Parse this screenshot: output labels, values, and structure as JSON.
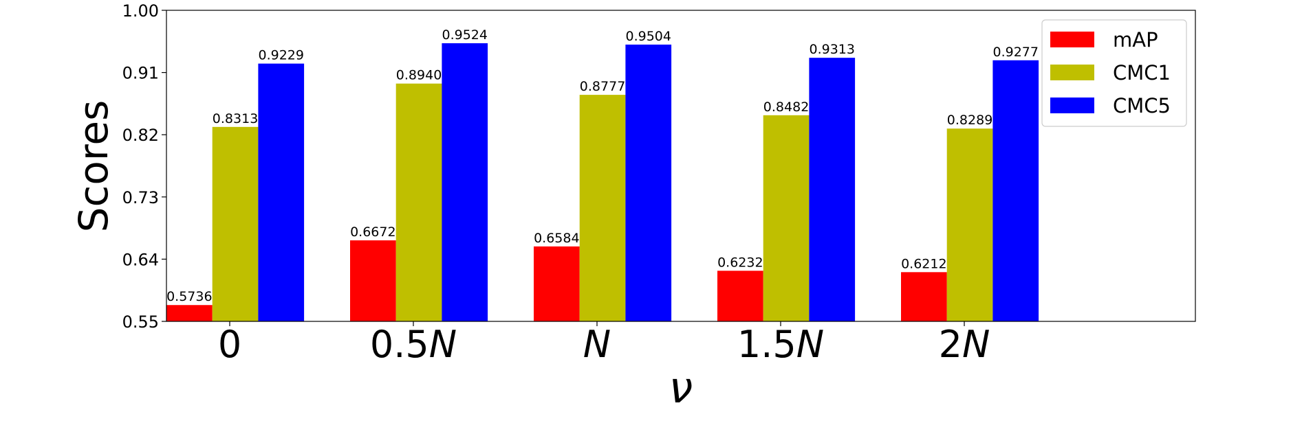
{
  "chart_data": {
    "type": "bar",
    "categories": [
      {
        "prefix": "0",
        "var": ""
      },
      {
        "prefix": "0.5",
        "var": "N"
      },
      {
        "prefix": "",
        "var": "N"
      },
      {
        "prefix": "1.5",
        "var": "N"
      },
      {
        "prefix": "2",
        "var": "N"
      }
    ],
    "series": [
      {
        "name": "mAP",
        "color": "#ff0000",
        "values": [
          0.5736,
          0.6672,
          0.6584,
          0.6232,
          0.6212
        ],
        "labels": [
          "0.5736",
          "0.6672",
          "0.6584",
          "0.6232",
          "0.6212"
        ]
      },
      {
        "name": "CMC1",
        "color": "#bfbf00",
        "values": [
          0.8313,
          0.894,
          0.8777,
          0.8482,
          0.8289
        ],
        "labels": [
          "0.8313",
          "0.8940",
          "0.8777",
          "0.8482",
          "0.8289"
        ]
      },
      {
        "name": "CMC5",
        "color": "#0000ff",
        "values": [
          0.9229,
          0.9524,
          0.9504,
          0.9313,
          0.9277
        ],
        "labels": [
          "0.9229",
          "0.9524",
          "0.9504",
          "0.9313",
          "0.9277"
        ]
      }
    ],
    "xlabel": "ν",
    "ylabel": "Scores",
    "ylim": [
      0.55,
      1.0
    ],
    "yticks": [
      "0.55",
      "0.64",
      "0.73",
      "0.82",
      "0.91",
      "1.00"
    ],
    "legend_position": "top-right",
    "grid": false
  }
}
